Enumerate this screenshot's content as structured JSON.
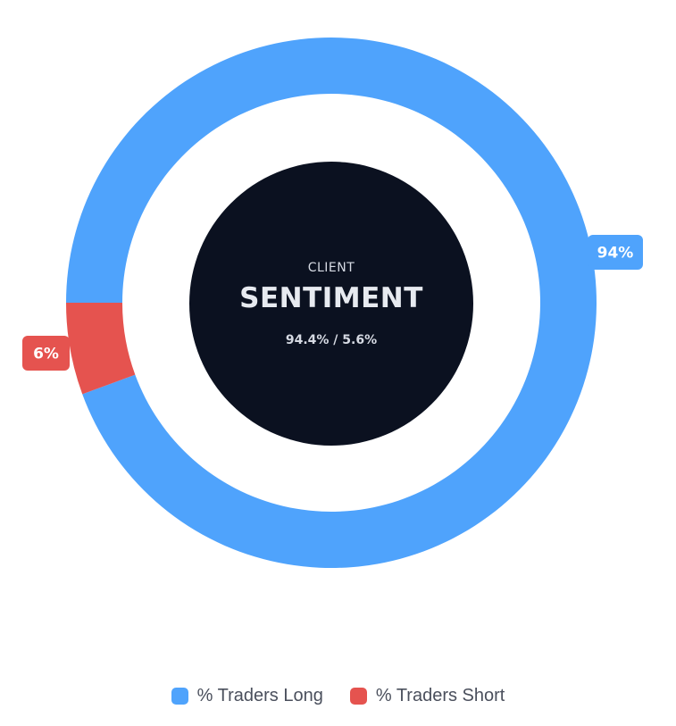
{
  "chart_data": {
    "type": "pie",
    "title": "",
    "categories": [
      "% Traders Long",
      "% Traders Short"
    ],
    "values": [
      94.4,
      5.6
    ],
    "data_labels": [
      "94%",
      "6%"
    ],
    "colors": [
      "#4fa3fc",
      "#e5534f"
    ],
    "legend_position": "bottom",
    "grid": false
  },
  "center": {
    "small": "CLIENT",
    "big": "SENTIMENT",
    "ratio": "94.4% / 5.6%",
    "background": "#0b1120"
  },
  "legend": {
    "items": [
      {
        "label": "% Traders Long",
        "color": "#4fa3fc"
      },
      {
        "label": "% Traders Short",
        "color": "#e5534f"
      }
    ]
  }
}
